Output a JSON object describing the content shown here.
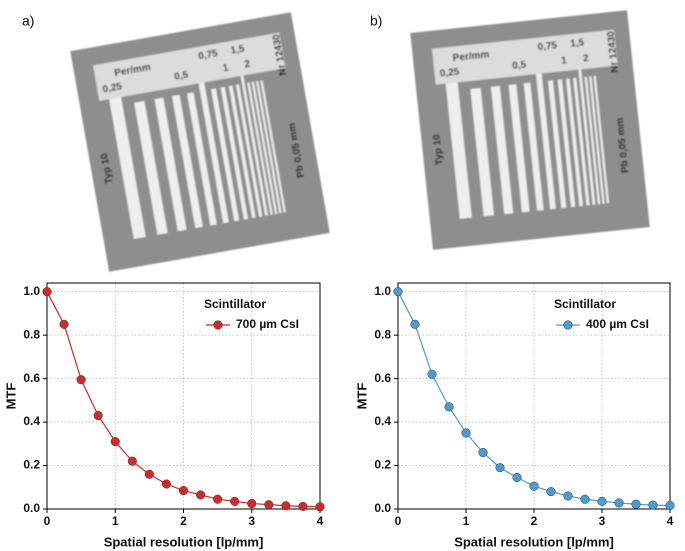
{
  "panel_labels": [
    "a)",
    "b)"
  ],
  "phantoms": [
    {
      "texts": {
        "unit": "Per/mm",
        "f025": "0,25",
        "f05": "0,5",
        "f075": "0,75",
        "f1": "1",
        "f15": "1,5",
        "f2": "2",
        "serial": "Nr 12430",
        "type": "Typ 10",
        "material": "Pb 0,05 mm"
      }
    },
    {
      "texts": {
        "unit": "Per/mm",
        "f025": "0,25",
        "f05": "0,5",
        "f075": "0,75",
        "f1": "1",
        "f15": "1,5",
        "f2": "2",
        "serial": "Nr 12430",
        "type": "Typ 10",
        "material": "Pb 0,05 mm"
      }
    }
  ],
  "chart_data": [
    {
      "type": "line",
      "xlabel": "Spatial resolution [lp/mm]",
      "ylabel": "MTF",
      "legend_title": "Scintillator",
      "legend": "upper right",
      "grid": true,
      "x": [
        0,
        0.25,
        0.5,
        0.75,
        1,
        1.25,
        1.5,
        1.75,
        2,
        2.25,
        2.5,
        2.75,
        3,
        3.25,
        3.5,
        3.75,
        4
      ],
      "series": [
        {
          "name": "700 µm CsI",
          "color": "#d22a2a",
          "values": [
            1.0,
            0.85,
            0.595,
            0.43,
            0.31,
            0.22,
            0.16,
            0.115,
            0.085,
            0.065,
            0.045,
            0.035,
            0.025,
            0.02,
            0.015,
            0.012,
            0.01
          ]
        }
      ],
      "xlim": [
        0,
        4
      ],
      "xticks": [
        0,
        1,
        2,
        3,
        4
      ],
      "ylim": [
        0,
        1.04
      ],
      "yticks": [
        {
          "value": 0,
          "label": "0.0"
        },
        0.2,
        0.4,
        0.6,
        0.8,
        {
          "value": 1,
          "label": "1.0"
        }
      ]
    },
    {
      "type": "line",
      "xlabel": "Spatial resolution [lp/mm]",
      "ylabel": "MTF",
      "legend_title": "Scintillator",
      "legend": "upper right",
      "grid": true,
      "x": [
        0,
        0.25,
        0.5,
        0.75,
        1,
        1.25,
        1.5,
        1.75,
        2,
        2.25,
        2.5,
        2.75,
        3,
        3.25,
        3.5,
        3.75,
        4
      ],
      "series": [
        {
          "name": "400 µm CsI",
          "color": "#4d9bd3",
          "values": [
            1.0,
            0.85,
            0.62,
            0.47,
            0.35,
            0.26,
            0.19,
            0.145,
            0.105,
            0.08,
            0.06,
            0.045,
            0.035,
            0.028,
            0.022,
            0.018,
            0.016
          ]
        }
      ],
      "xlim": [
        0,
        4
      ],
      "xticks": [
        0,
        1,
        2,
        3,
        4
      ],
      "ylim": [
        0,
        1.04
      ],
      "yticks": [
        {
          "value": 0,
          "label": "0.0"
        },
        0.2,
        0.4,
        0.6,
        0.8,
        {
          "value": 1,
          "label": "1.0"
        }
      ]
    }
  ]
}
